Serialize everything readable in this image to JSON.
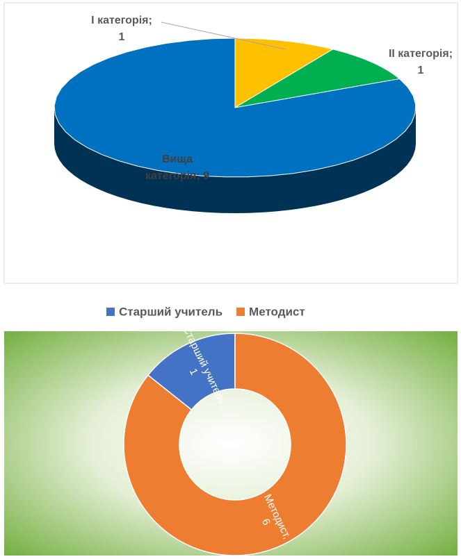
{
  "chart_data": [
    {
      "type": "pie3d",
      "categories": [
        "І категорія",
        "ІІ категорія",
        "Вища категорія"
      ],
      "values": [
        1,
        1,
        9
      ],
      "value_labels": [
        "І категорія; 1",
        "ІІ категорія; 1",
        "Вища категорія; 9"
      ],
      "colors": [
        "#ffc000",
        "#00b050",
        "#0070c0"
      ]
    },
    {
      "type": "doughnut",
      "categories": [
        "Старший учитель",
        "Методист"
      ],
      "values": [
        1,
        6
      ],
      "value_labels": [
        "Старший учитель, 1",
        "Методист, 6"
      ],
      "colors": [
        "#4472c4",
        "#ed7d31"
      ],
      "legend": "top"
    }
  ]
}
